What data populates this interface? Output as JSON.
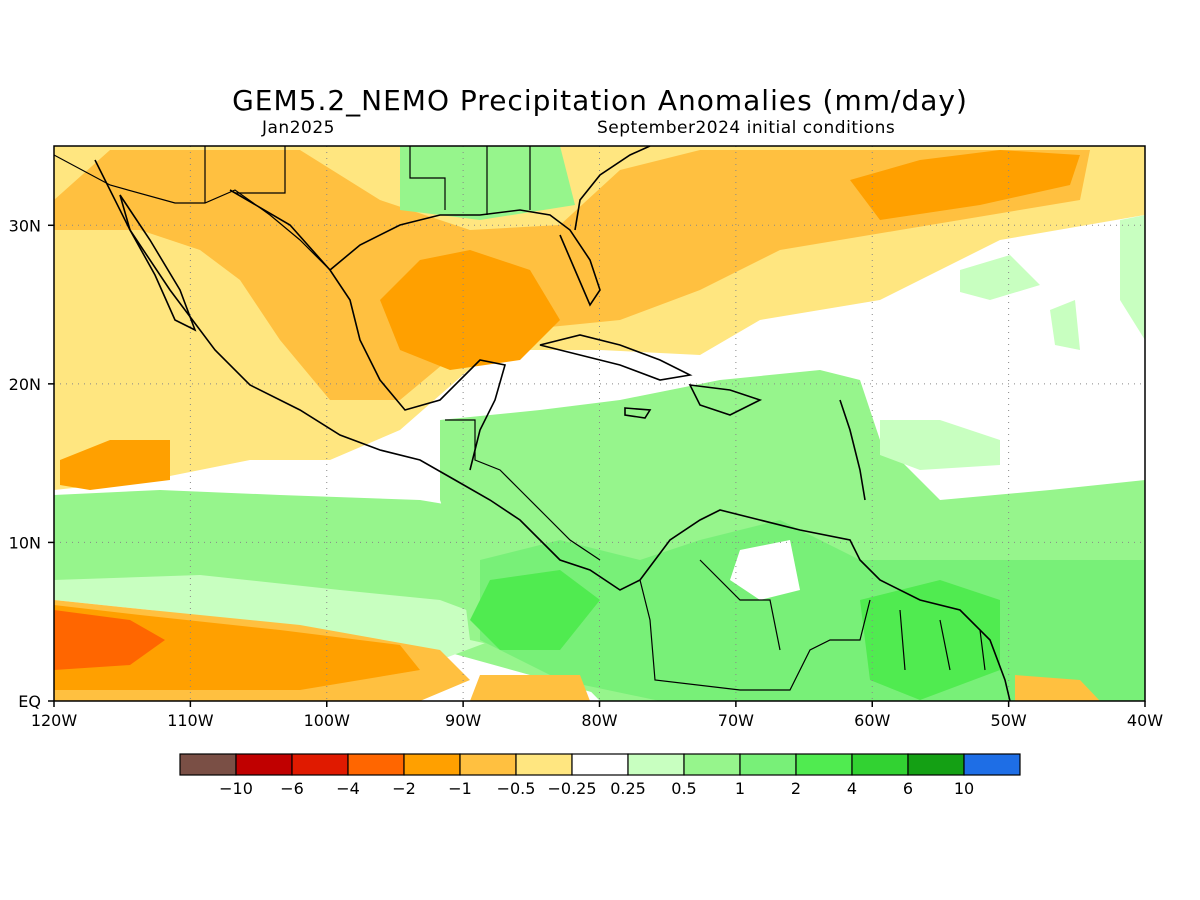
{
  "title": "GEM5.2_NEMO Precipitation Anomalies (mm/day)",
  "valid_month": "Jan2025",
  "init_conditions": "September2024 initial conditions",
  "map": {
    "lon_range": [
      -120,
      -40
    ],
    "lat_range": [
      0,
      35
    ],
    "lat_ticks": [
      {
        "value": 30,
        "label": "30N"
      },
      {
        "value": 20,
        "label": "20N"
      },
      {
        "value": 10,
        "label": "10N"
      },
      {
        "value": 0,
        "label": "EQ"
      }
    ],
    "lon_ticks": [
      {
        "value": -120,
        "label": "120W"
      },
      {
        "value": -110,
        "label": "110W"
      },
      {
        "value": -100,
        "label": "100W"
      },
      {
        "value": -90,
        "label": "90W"
      },
      {
        "value": -80,
        "label": "80W"
      },
      {
        "value": -70,
        "label": "70W"
      },
      {
        "value": -60,
        "label": "60W"
      },
      {
        "value": -50,
        "label": "50W"
      },
      {
        "value": -40,
        "label": "40W"
      }
    ],
    "grid": "dotted"
  },
  "colorbar": {
    "colors": [
      "#7a4f45",
      "#c00000",
      "#e01a00",
      "#ff6600",
      "#ffa000",
      "#ffc040",
      "#ffe680",
      "#ffffff",
      "#c8ffc0",
      "#96f58c",
      "#78f078",
      "#50eb50",
      "#32d232",
      "#14a014",
      "#1e6ee6"
    ],
    "labels": [
      "−10",
      "−6",
      "−4",
      "−2",
      "−1",
      "−0.5",
      "−0.25",
      "0.25",
      "0.5",
      "1",
      "2",
      "4",
      "6",
      "10"
    ]
  }
}
